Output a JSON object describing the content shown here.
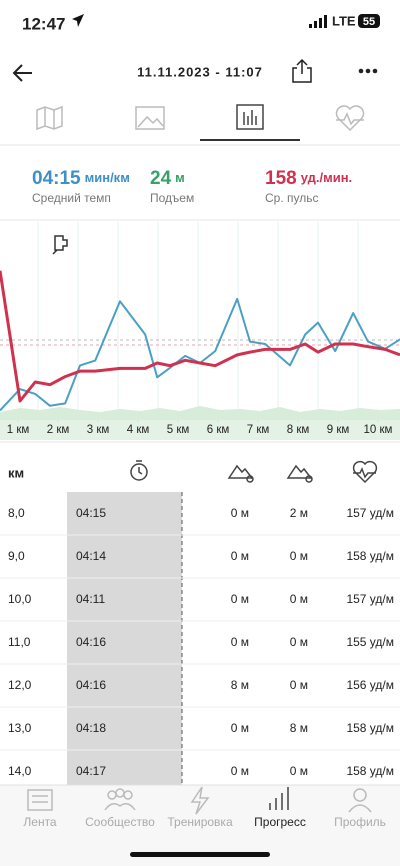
{
  "status_bar": {
    "time": "12:47",
    "network": "LTE",
    "battery": "55"
  },
  "header": {
    "title": "11.11.2023 - 11:07"
  },
  "summary": [
    {
      "value": "04:15",
      "unit": "мин/км",
      "label": "Средний темп",
      "color": "#3d8fc6"
    },
    {
      "value": "24",
      "unit": "м",
      "label": "Подъем",
      "color": "#3aa06a"
    },
    {
      "value": "158",
      "unit": "уд./мин.",
      "label": "Ср. пульс",
      "color": "#d0314f"
    }
  ],
  "chart_data": {
    "type": "line",
    "x": [
      0.55,
      1.05,
      1.43,
      1.8,
      2.18,
      2.55,
      2.93,
      3.55,
      4.18,
      4.48,
      4.8,
      5.18,
      5.55,
      5.93,
      6.48,
      6.8,
      7.18,
      7.8,
      8.18,
      8.5,
      8.93,
      9.38,
      9.75,
      10.18,
      10.55
    ],
    "xlim": [
      0.55,
      10.55
    ],
    "xticks": [
      {
        "value": 1,
        "label": "1 км"
      },
      {
        "value": 2,
        "label": "2 км"
      },
      {
        "value": 3,
        "label": "3 км"
      },
      {
        "value": 4,
        "label": "4 км"
      },
      {
        "value": 5,
        "label": "5 км"
      },
      {
        "value": 6,
        "label": "6 км"
      },
      {
        "value": 7,
        "label": "7 км"
      },
      {
        "value": 8,
        "label": "8 км"
      },
      {
        "value": 9,
        "label": "9 км"
      },
      {
        "value": 10,
        "label": "10 км"
      }
    ],
    "ylim": [
      130,
      200
    ],
    "y2lim": [
      300,
      220
    ],
    "series": [
      {
        "color": "#4a9fc4",
        "axis": "y2",
        "values": [
          296,
          287,
          289,
          294,
          293,
          277,
          275,
          250,
          264,
          282,
          278,
          273,
          276,
          271,
          249,
          267,
          268,
          277,
          264,
          259,
          271,
          255,
          267,
          270,
          266
        ]
      },
      {
        "color": "#d0314f",
        "values": [
          185,
          137,
          144,
          143,
          146,
          148,
          148,
          149,
          149,
          151,
          150,
          152,
          151,
          150,
          154,
          155,
          156,
          156,
          158,
          155,
          158,
          158,
          157,
          156,
          154
        ]
      }
    ]
  },
  "table": {
    "header": "км",
    "rows": [
      [
        "8,0",
        "04:15",
        "0 м",
        "2 м",
        "157 уд/м"
      ],
      [
        "9,0",
        "04:14",
        "0 м",
        "0 м",
        "158 уд/м"
      ],
      [
        "10,0",
        "04:11",
        "0 м",
        "0 м",
        "157 уд/м"
      ],
      [
        "11,0",
        "04:16",
        "0 м",
        "0 м",
        "155 уд/м"
      ],
      [
        "12,0",
        "04:16",
        "8 м",
        "0 м",
        "156 уд/м"
      ],
      [
        "13,0",
        "04:18",
        "0 м",
        "8 м",
        "158 уд/м"
      ],
      [
        "14,0",
        "04:17",
        "0 м",
        "0 м",
        "158 уд/м"
      ]
    ]
  },
  "nav": [
    "Лента",
    "Сообщество",
    "Тренировка",
    "Прогресс",
    "Профиль"
  ]
}
